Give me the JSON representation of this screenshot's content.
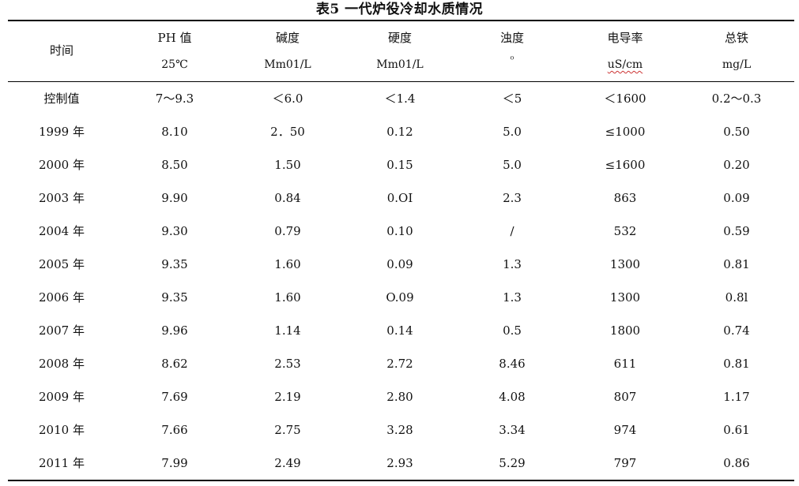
{
  "title": "表5    一代炉役冷却水质情况",
  "header": {
    "time": "时间",
    "columns": [
      {
        "top": "PH 值",
        "bottom": "25℃"
      },
      {
        "top": "碱度",
        "bottom": "Mm01/L"
      },
      {
        "top": "硬度",
        "bottom": "Mm01/L"
      },
      {
        "top": "浊度",
        "bottom": "⁰"
      },
      {
        "top": "电导率",
        "bottom": "uS/cm"
      },
      {
        "top": "总铁",
        "bottom": "mg/L"
      }
    ]
  },
  "rows": [
    [
      "控制值",
      "7～9.3",
      "＜6.0",
      "＜1.4",
      "＜5",
      "＜1600",
      "0.2～0.3"
    ],
    [
      "1999 年",
      "8.10",
      "2．50",
      "0.12",
      "5.0",
      "≤1000",
      "0.50"
    ],
    [
      "2000 年",
      "8.50",
      "1.50",
      "0.15",
      "5.0",
      "≤1600",
      "0.20"
    ],
    [
      "2003 年",
      "9.90",
      "0.84",
      "0.OI",
      "2.3",
      "863",
      "0.09"
    ],
    [
      "2004 年",
      "9.30",
      "0.79",
      "0.10",
      "/",
      "532",
      "0.59"
    ],
    [
      "2005 年",
      "9.35",
      "1.60",
      "0.09",
      "1.3",
      "1300",
      "0.81"
    ],
    [
      "2006 年",
      "9.35",
      "1.60",
      "O.09",
      "1.3",
      "1300",
      "0.8l"
    ],
    [
      "2007 年",
      "9.96",
      "1.14",
      "0.14",
      "0.5",
      "1800",
      "0.74"
    ],
    [
      "2008 年",
      "8.62",
      "2.53",
      "2.72",
      "8.46",
      "611",
      "0.81"
    ],
    [
      "2009 年",
      "7.69",
      "2.19",
      "2.80",
      "4.08",
      "807",
      "1.17"
    ],
    [
      "2010 年",
      "7.66",
      "2.75",
      "3.28",
      "3.34",
      "974",
      "0.61"
    ],
    [
      "2011 年",
      "7.99",
      "2.49",
      "2.93",
      "5.29",
      "797",
      "0.86"
    ]
  ]
}
